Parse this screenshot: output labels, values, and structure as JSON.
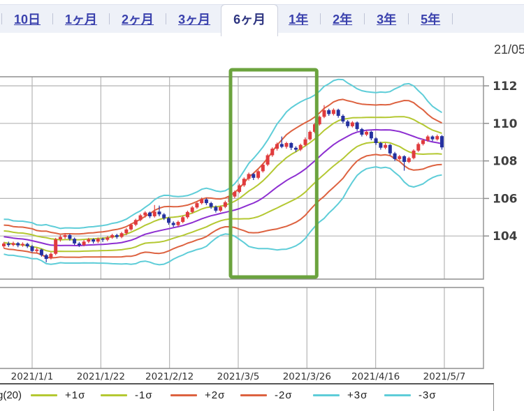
{
  "tabbar": {
    "tabs": [
      {
        "label": "10日",
        "active": false
      },
      {
        "label": "1ヶ月",
        "active": false
      },
      {
        "label": "2ヶ月",
        "active": false
      },
      {
        "label": "3ヶ月",
        "active": false
      },
      {
        "label": "6ヶ月",
        "active": true
      },
      {
        "label": "1年",
        "active": false
      },
      {
        "label": "2年",
        "active": false
      },
      {
        "label": "3年",
        "active": false
      },
      {
        "label": "5年",
        "active": false
      }
    ]
  },
  "header": {
    "date_label": "21/05"
  },
  "legend": {
    "prefix": "g(20)",
    "items": [
      {
        "label": "+1σ",
        "color": "#b4c832"
      },
      {
        "label": "-1σ",
        "color": "#b4c832"
      },
      {
        "label": "+2σ",
        "color": "#dd6240"
      },
      {
        "label": "-2σ",
        "color": "#dd6240"
      },
      {
        "label": "+3σ",
        "color": "#5ecdd8"
      },
      {
        "label": "-3σ",
        "color": "#5ecdd8"
      }
    ]
  },
  "chart_data": {
    "type": "candlestick",
    "overlay": "bollinger_bands",
    "bollinger_period": 20,
    "title": "",
    "xlabel": "",
    "ylabel": "",
    "y_ticks": [
      "112",
      "110",
      "108",
      "106",
      "104"
    ],
    "x_ticks": [
      "2021/1/1",
      "2021/1/22",
      "2021/2/12",
      "2021/3/5",
      "2021/3/26",
      "2021/4/16",
      "2021/5/7"
    ],
    "ylim_visible": [
      101.7,
      112.5
    ],
    "grid": true,
    "highlight": {
      "from_tick": "2021/3/5",
      "to_tick": "2021/3/26",
      "color": "#6ba33e"
    },
    "colors": {
      "up_candle": "#e03b3e",
      "down_candle": "#2531a0",
      "ma": "#8d2fd1",
      "sigma1": "#b4c832",
      "sigma2": "#dd6240",
      "sigma3": "#5ecdd8",
      "grid": "#b5b5b5",
      "border": "#8f8f8f",
      "tick_label": "#3f3f3f",
      "date_label": "#333333"
    },
    "lead_in_closes": [
      104.35,
      104.2,
      104.4,
      104.15,
      103.95,
      104.2,
      104.3,
      104.38,
      104.2,
      104.08,
      104.12,
      104.05,
      104.18,
      103.95,
      103.85,
      103.68,
      103.55,
      103.35,
      103.52,
      103.55
    ],
    "candles": [
      [
        103.45,
        103.68,
        103.35,
        103.6
      ],
      [
        103.6,
        103.7,
        103.42,
        103.52
      ],
      [
        103.52,
        103.7,
        103.45,
        103.62
      ],
      [
        103.62,
        103.68,
        103.4,
        103.5
      ],
      [
        103.5,
        103.66,
        103.42,
        103.58
      ],
      [
        103.58,
        103.64,
        103.36,
        103.45
      ],
      [
        103.45,
        103.52,
        103.12,
        103.2
      ],
      [
        103.2,
        103.38,
        103.1,
        103.28
      ],
      [
        103.28,
        103.32,
        102.9,
        102.98
      ],
      [
        102.98,
        103.05,
        102.6,
        102.78
      ],
      [
        102.85,
        103.12,
        102.75,
        103.05
      ],
      [
        103.05,
        103.9,
        102.98,
        103.82
      ],
      [
        103.82,
        104.05,
        103.7,
        103.95
      ],
      [
        103.95,
        104.15,
        103.85,
        104.05
      ],
      [
        104.05,
        104.12,
        103.75,
        103.85
      ],
      [
        103.85,
        103.92,
        103.52,
        103.6
      ],
      [
        103.6,
        103.68,
        103.42,
        103.52
      ],
      [
        103.52,
        103.78,
        103.45,
        103.7
      ],
      [
        103.7,
        103.9,
        103.62,
        103.82
      ],
      [
        103.82,
        103.88,
        103.6,
        103.7
      ],
      [
        103.7,
        103.92,
        103.62,
        103.85
      ],
      [
        103.85,
        103.92,
        103.68,
        103.8
      ],
      [
        103.8,
        104.0,
        103.72,
        103.92
      ],
      [
        103.92,
        104.12,
        103.85,
        104.05
      ],
      [
        104.05,
        104.12,
        103.85,
        103.95
      ],
      [
        103.95,
        104.22,
        103.88,
        104.15
      ],
      [
        104.15,
        104.42,
        104.05,
        104.35
      ],
      [
        104.35,
        104.68,
        104.28,
        104.6
      ],
      [
        104.6,
        104.92,
        104.52,
        104.85
      ],
      [
        104.85,
        105.18,
        104.78,
        105.1
      ],
      [
        105.1,
        105.32,
        104.98,
        105.25
      ],
      [
        105.25,
        105.3,
        104.95,
        105.05
      ],
      [
        105.05,
        105.65,
        104.98,
        105.3
      ],
      [
        105.3,
        105.62,
        105.05,
        105.15
      ],
      [
        105.15,
        105.22,
        104.85,
        104.95
      ],
      [
        104.95,
        105.02,
        104.6,
        104.7
      ],
      [
        104.7,
        104.78,
        104.48,
        104.58
      ],
      [
        104.58,
        104.82,
        104.5,
        104.75
      ],
      [
        104.75,
        105.08,
        104.68,
        105.0
      ],
      [
        105.0,
        105.35,
        104.92,
        105.28
      ],
      [
        105.28,
        105.6,
        105.2,
        105.52
      ],
      [
        105.52,
        105.82,
        105.45,
        105.75
      ],
      [
        105.75,
        106.05,
        105.68,
        105.95
      ],
      [
        105.95,
        106.02,
        105.65,
        105.75
      ],
      [
        105.75,
        105.82,
        105.45,
        105.55
      ],
      [
        105.55,
        105.62,
        105.25,
        105.35
      ],
      [
        105.35,
        105.62,
        105.28,
        105.55
      ],
      [
        105.55,
        105.88,
        105.48,
        105.8
      ],
      [
        105.8,
        106.18,
        105.72,
        106.1
      ],
      [
        106.1,
        106.42,
        106.02,
        106.35
      ],
      [
        106.35,
        106.78,
        106.28,
        106.7
      ],
      [
        106.7,
        107.12,
        106.62,
        107.05
      ],
      [
        107.05,
        107.38,
        106.95,
        107.3
      ],
      [
        107.3,
        107.36,
        106.98,
        107.1
      ],
      [
        107.1,
        107.52,
        107.02,
        107.45
      ],
      [
        107.45,
        107.88,
        107.38,
        107.8
      ],
      [
        107.8,
        108.38,
        107.72,
        108.3
      ],
      [
        108.3,
        108.72,
        108.22,
        108.65
      ],
      [
        108.65,
        108.98,
        108.55,
        108.9
      ],
      [
        108.9,
        109.3,
        108.68,
        108.75
      ],
      [
        108.75,
        109.02,
        108.65,
        108.95
      ],
      [
        108.95,
        109.0,
        108.58,
        108.7
      ],
      [
        108.7,
        108.78,
        108.48,
        108.6
      ],
      [
        108.6,
        108.92,
        108.52,
        108.85
      ],
      [
        108.85,
        109.25,
        108.78,
        109.15
      ],
      [
        109.15,
        109.62,
        109.08,
        109.55
      ],
      [
        109.55,
        110.02,
        109.48,
        109.95
      ],
      [
        109.95,
        110.42,
        109.88,
        110.35
      ],
      [
        110.35,
        110.97,
        110.28,
        110.7
      ],
      [
        110.7,
        110.78,
        110.4,
        110.5
      ],
      [
        110.5,
        110.8,
        110.42,
        110.72
      ],
      [
        110.72,
        110.78,
        110.3,
        110.4
      ],
      [
        110.4,
        110.48,
        110.0,
        110.1
      ],
      [
        110.1,
        110.18,
        109.75,
        109.85
      ],
      [
        109.85,
        110.12,
        109.78,
        110.05
      ],
      [
        110.05,
        110.1,
        109.6,
        109.7
      ],
      [
        109.7,
        109.76,
        109.3,
        109.4
      ],
      [
        109.4,
        109.62,
        109.32,
        109.55
      ],
      [
        109.55,
        109.6,
        109.1,
        109.2
      ],
      [
        109.2,
        109.26,
        108.85,
        108.95
      ],
      [
        108.95,
        109.02,
        108.6,
        108.7
      ],
      [
        108.7,
        108.95,
        108.62,
        108.85
      ],
      [
        108.85,
        108.9,
        108.3,
        108.4
      ],
      [
        108.4,
        108.48,
        108.0,
        108.1
      ],
      [
        108.1,
        108.32,
        108.02,
        108.25
      ],
      [
        108.25,
        108.3,
        107.48,
        107.95
      ],
      [
        107.95,
        108.22,
        107.88,
        108.15
      ],
      [
        108.15,
        108.62,
        108.08,
        108.55
      ],
      [
        108.55,
        108.98,
        108.48,
        108.9
      ],
      [
        108.9,
        109.18,
        108.82,
        109.1
      ],
      [
        109.1,
        109.38,
        109.02,
        109.3
      ],
      [
        109.3,
        109.36,
        109.05,
        109.15
      ],
      [
        109.15,
        109.4,
        109.08,
        109.32
      ],
      [
        109.32,
        109.38,
        108.6,
        108.72
      ]
    ]
  }
}
